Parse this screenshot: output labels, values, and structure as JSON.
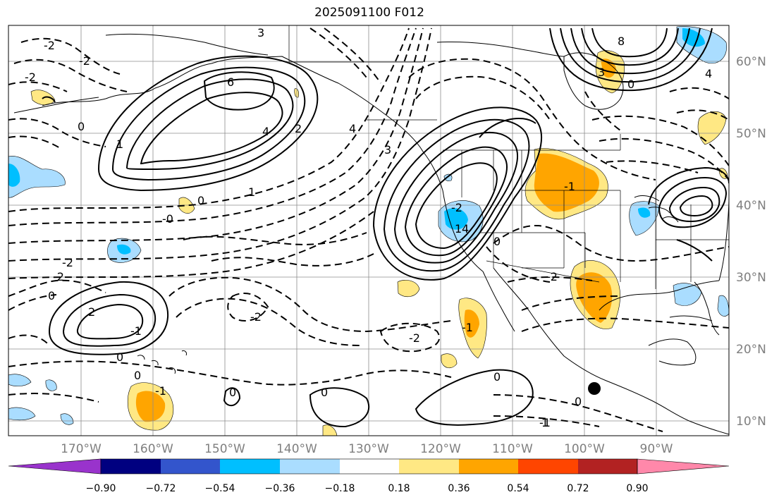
{
  "title": "2025091100 F012",
  "lon_labels": [
    "170°W",
    "160°W",
    "150°W",
    "140°W",
    "130°W",
    "120°W",
    "110°W",
    "100°W",
    "90°W"
  ],
  "lat_labels": [
    "60°N",
    "50°N",
    "40°N",
    "30°N",
    "20°N",
    "10°N"
  ],
  "colorbar": {
    "colors": [
      "#9933cc",
      "#000080",
      "#3355cc",
      "#00bfff",
      "#aaddff",
      "#ffffff",
      "#ffe884",
      "#ffa500",
      "#ff4500",
      "#b22222",
      "#ff88aa"
    ],
    "tick_labels": [
      "−0.90",
      "−0.72",
      "−0.54",
      "−0.36",
      "−0.18",
      "0.18",
      "0.36",
      "0.54",
      "0.72",
      "0.90"
    ]
  },
  "contour_labels": [
    "-2",
    "-2",
    "-2",
    "-2",
    "-2",
    "-2",
    "-2",
    "-2",
    "-2",
    "-1",
    "-1",
    "-1",
    "-1",
    "-1",
    "0",
    "0",
    "0",
    "0",
    "0",
    "0",
    "0",
    "0",
    "0",
    "0",
    "0",
    "1",
    "1",
    "1",
    "1",
    "2",
    "2",
    "3",
    "3",
    "3",
    "4",
    "4",
    "4",
    "4",
    "6",
    "8",
    "-0"
  ],
  "marker": "storm-position-dot"
}
